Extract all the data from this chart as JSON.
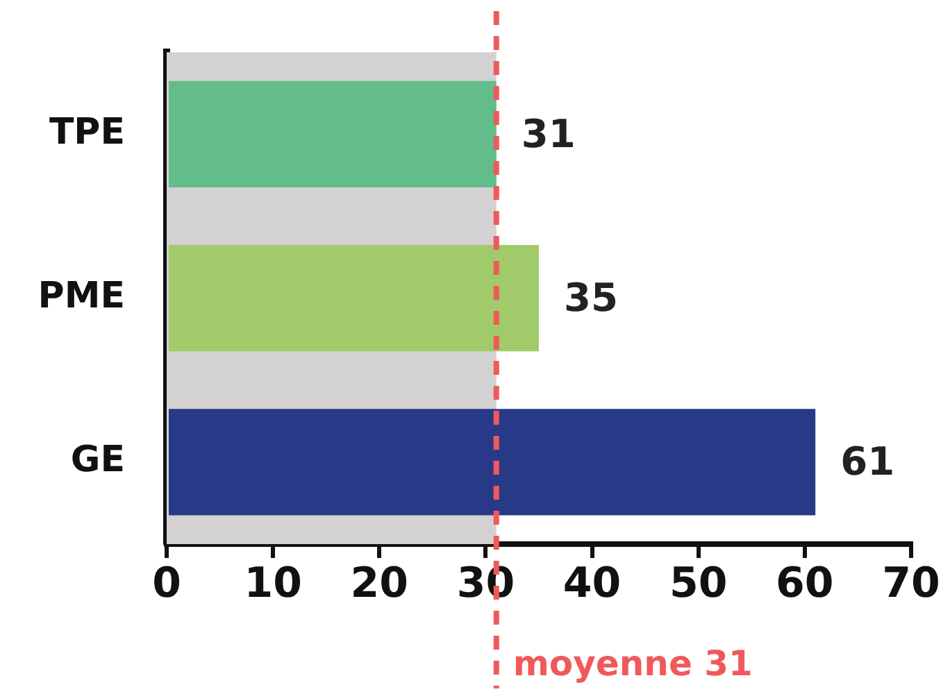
{
  "chart_data": {
    "type": "bar",
    "orientation": "horizontal",
    "categories": [
      "TPE",
      "PME",
      "GE"
    ],
    "values": [
      31,
      35,
      61
    ],
    "colors": [
      "#62bd8b",
      "#a1ca6a",
      "#283a87"
    ],
    "xlim": [
      0,
      70
    ],
    "xticks": [
      0,
      10,
      20,
      30,
      40,
      50,
      60,
      70
    ],
    "grid": false,
    "legend": false,
    "data_labels": true,
    "bands": [
      {
        "axis": "x",
        "from": 0,
        "to": 31,
        "color": "#d3d1d2"
      }
    ],
    "ref_lines": [
      {
        "axis": "x",
        "value": 31,
        "label": "moyenne 31",
        "color": "#f0595c",
        "line_style": "dashed"
      }
    ]
  }
}
